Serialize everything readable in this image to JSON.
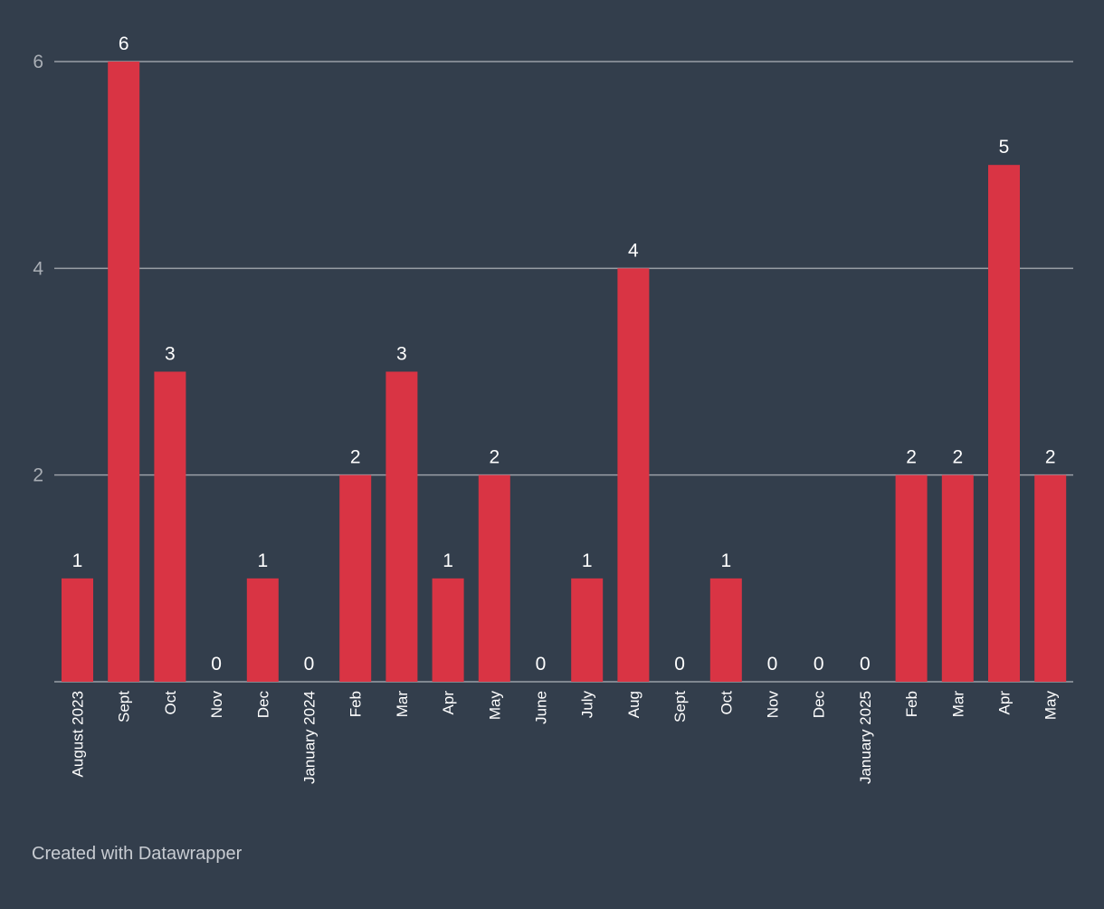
{
  "chart_data": {
    "type": "bar",
    "title": "",
    "xlabel": "",
    "ylabel": "",
    "ylim": [
      0,
      6
    ],
    "yticks": [
      2,
      4,
      6
    ],
    "grid": true,
    "categories": [
      "August 2023",
      "Sept",
      "Oct",
      "Nov",
      "Dec",
      "January 2024",
      "Feb",
      "Mar",
      "Apr",
      "May",
      "June",
      "July",
      "Aug",
      "Sept",
      "Oct",
      "Nov",
      "Dec",
      "January 2025",
      "Feb",
      "Mar",
      "Apr",
      "May"
    ],
    "values": [
      1,
      6,
      3,
      0,
      1,
      0,
      2,
      3,
      1,
      2,
      0,
      1,
      4,
      0,
      1,
      0,
      0,
      0,
      2,
      2,
      5,
      2
    ]
  },
  "colors": {
    "background": "#333e4c",
    "bar": "#d93444",
    "grid": "#9a9fa6",
    "axis_text": "#a9aeb5",
    "label_text": "#ffffff"
  },
  "footer": {
    "credit": "Created with Datawrapper"
  }
}
